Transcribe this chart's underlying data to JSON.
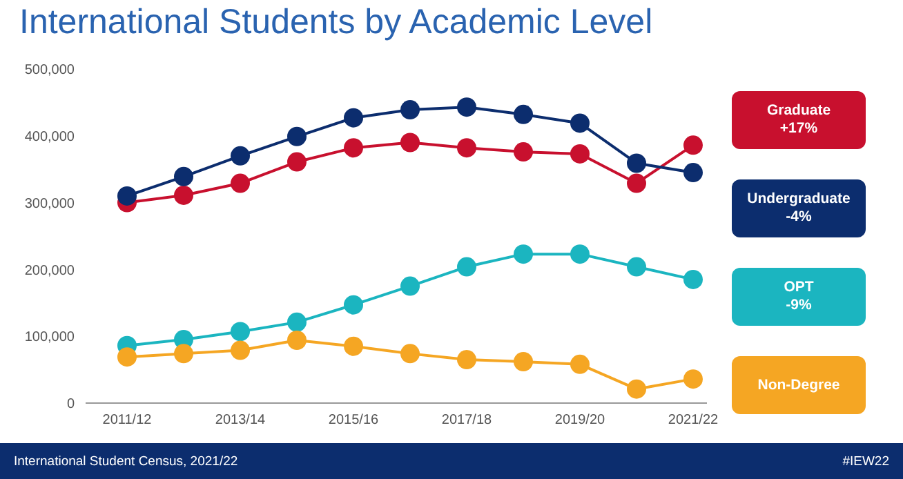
{
  "chart_data": {
    "type": "line",
    "title": "International Students by Academic Level",
    "categories": [
      "2011/12",
      null,
      "2013/14",
      null,
      "2015/16",
      null,
      "2017/18",
      null,
      "2019/20",
      null,
      "2021/22"
    ],
    "series": [
      {
        "name": "Graduate +17%",
        "color": "#c8102e",
        "values": [
          300000,
          311000,
          329000,
          361000,
          382000,
          390000,
          382000,
          376000,
          373000,
          329000,
          386000
        ]
      },
      {
        "name": "Undergraduate -4%",
        "color": "#0c2d6e",
        "values": [
          310000,
          339000,
          370000,
          399000,
          427000,
          439000,
          443000,
          432000,
          419000,
          359000,
          345000
        ]
      },
      {
        "name": "OPT -9%",
        "color": "#1bb5c0",
        "values": [
          86000,
          95000,
          107000,
          121000,
          147000,
          175000,
          204000,
          223000,
          223000,
          204000,
          185000
        ]
      },
      {
        "name": "Non-Degree",
        "color": "#f5a623",
        "values": [
          69000,
          74000,
          79000,
          94000,
          85000,
          74000,
          65000,
          62000,
          58000,
          21000,
          36000
        ]
      }
    ],
    "ylim": [
      0,
      500000
    ],
    "yticks": [
      0,
      {
        "value": 100000,
        "label": "100,000"
      },
      {
        "value": 200000,
        "label": "200,000"
      },
      {
        "value": 300000,
        "label": "300,000"
      },
      {
        "value": 400000,
        "label": "400,000"
      },
      {
        "value": 500000,
        "label": "500,000"
      }
    ],
    "grid": false,
    "legend": "right",
    "marker": "circle",
    "line_style": "solid",
    "annotations": [
      "International Student Census, 2021/22",
      "#IEW22"
    ]
  }
}
